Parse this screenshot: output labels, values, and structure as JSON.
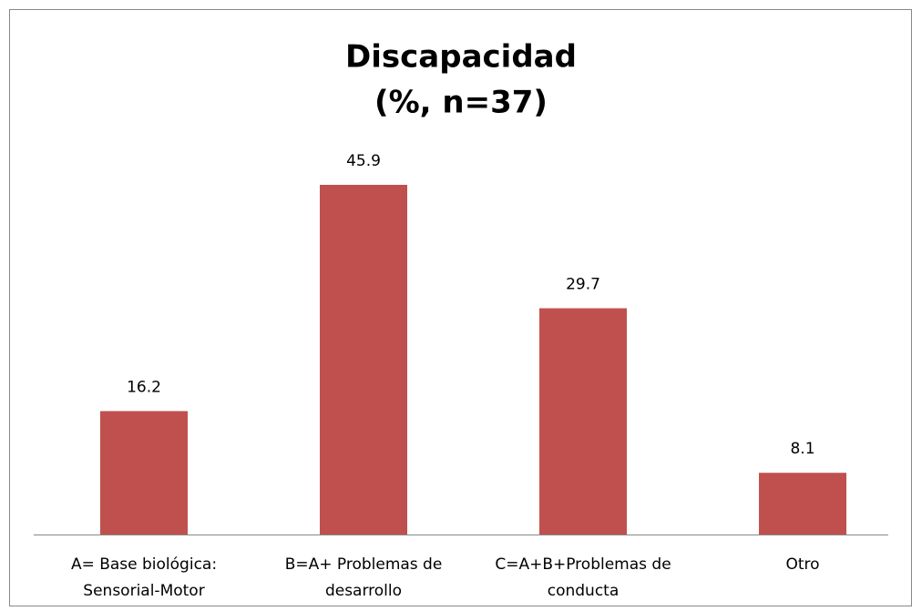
{
  "chart_data": {
    "type": "bar",
    "title": [
      "Discapacidad",
      "(%, n=37)"
    ],
    "categories": [
      [
        "A= Base biológica:",
        "Sensorial-Motor"
      ],
      [
        "B=A+ Problemas de",
        "desarrollo"
      ],
      [
        "C=A+B+Problemas de",
        "conducta"
      ],
      [
        "Otro"
      ]
    ],
    "values": [
      16.2,
      45.9,
      29.7,
      8.1
    ],
    "color": "#c0504d"
  }
}
